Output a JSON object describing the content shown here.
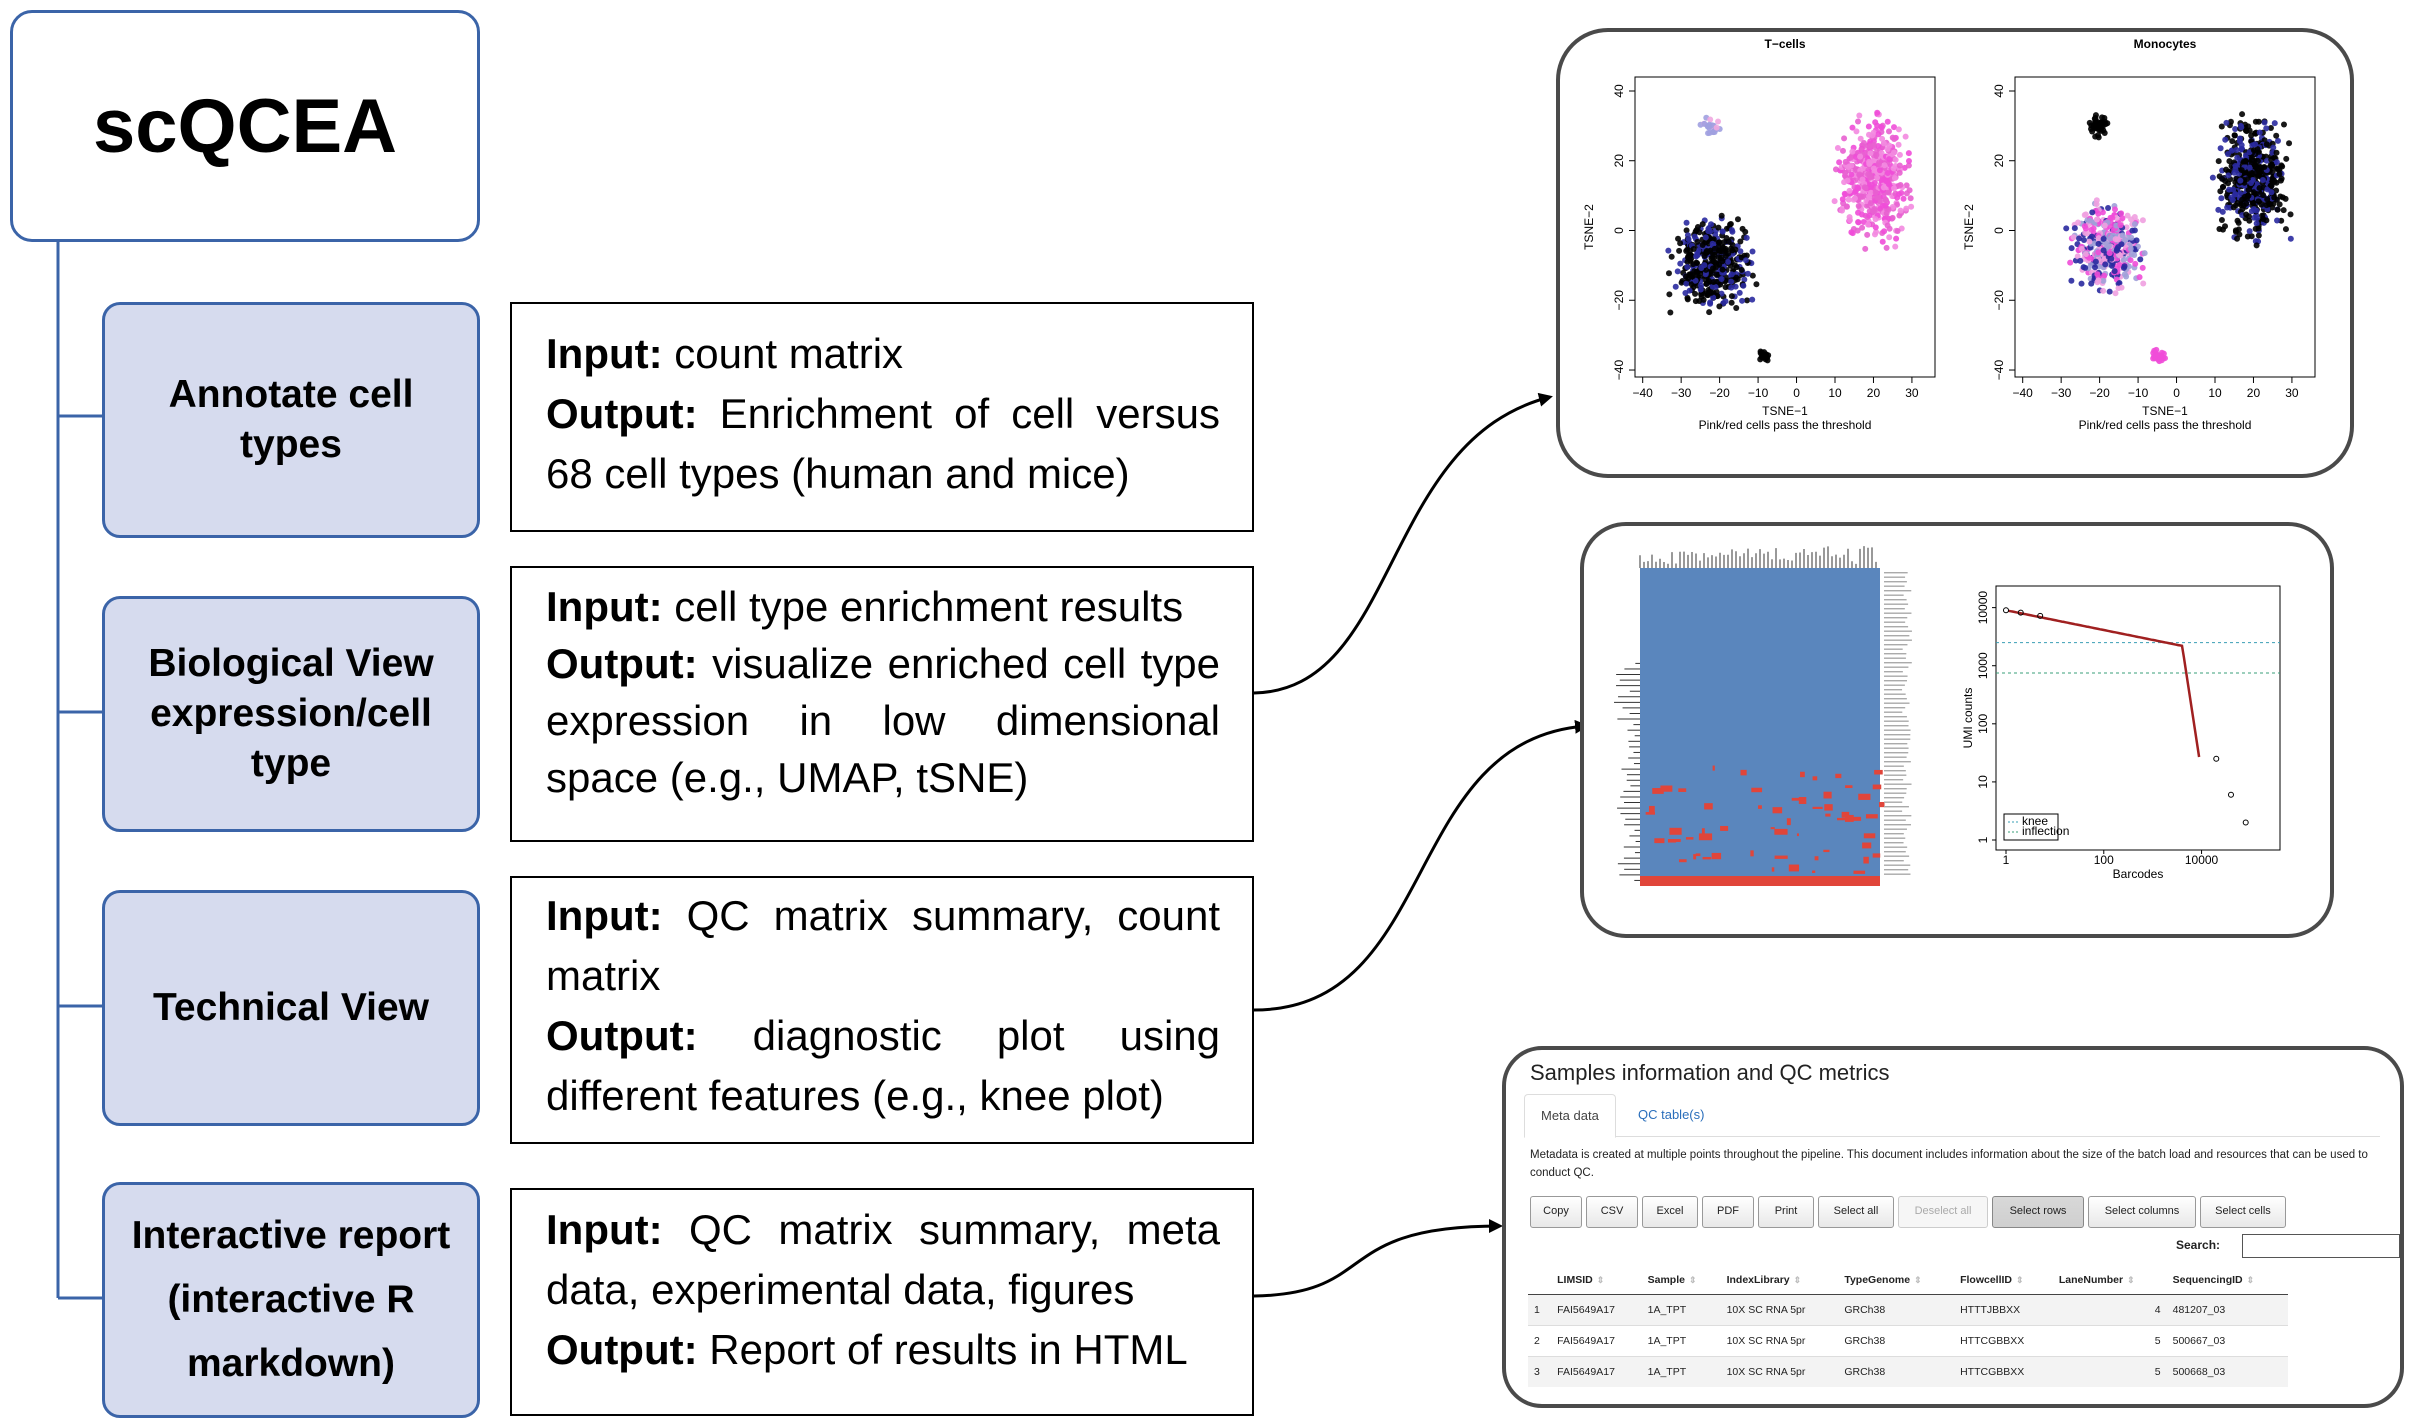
{
  "title": "scQCEA",
  "steps": [
    {
      "label_lines": [
        "Annotate cell",
        "types"
      ],
      "input_label": "Input:",
      "input": "count matrix",
      "output_label": "Output:",
      "output": "Enrichment of cell versus 68 cell types (human and mice)"
    },
    {
      "label_lines": [
        "Biological View",
        "expression/cell",
        "type"
      ],
      "input_label": "Input:",
      "input": "cell type enrichment results",
      "output_label": "Output:",
      "output": "visualize enriched cell type expression in low dimensional space (e.g., UMAP, tSNE)"
    },
    {
      "label_lines": [
        "Technical View"
      ],
      "input_label": "Input:",
      "input": "QC matrix summary, count matrix",
      "output_label": "Output:",
      "output": "diagnostic plot using different features (e.g., knee plot)"
    },
    {
      "label_lines": [
        "Interactive report",
        "(interactive R",
        "markdown)"
      ],
      "input_label": "Input:",
      "input": "QC matrix summary, meta data, experimental data, figures",
      "output_label": "Output:",
      "output": "Report of results in HTML"
    }
  ],
  "tsne": {
    "xlabel": "TSNE−1",
    "ylabel": "TSNE−2",
    "caption": "Pink/red cells pass the threshold",
    "xticks": [
      "−40",
      "−30",
      "−20",
      "−10",
      "0",
      "10",
      "20",
      "30"
    ],
    "yticks": [
      "−40",
      "−20",
      "0",
      "20",
      "40"
    ],
    "plots": [
      {
        "title": "T−cells"
      },
      {
        "title": "Monocytes"
      }
    ]
  },
  "knee": {
    "xlabel": "Barcodes",
    "ylabel": "UMI counts",
    "xticks": [
      "1",
      "100",
      "10000"
    ],
    "yticks": [
      "1",
      "10",
      "100",
      "1000",
      "10000"
    ],
    "legend": [
      "knee",
      "inflection"
    ]
  },
  "report": {
    "header": "Samples information and QC metrics",
    "tabs": [
      "Meta data",
      "QC table(s)"
    ],
    "description": "Metadata is created at multiple points throughout the pipeline. This document includes information about the size of the batch load and resources that can be used to conduct QC.",
    "buttons": [
      "Copy",
      "CSV",
      "Excel",
      "PDF",
      "Print",
      "Select all",
      "Deselect all",
      "Select rows",
      "Select columns",
      "Select cells"
    ],
    "search_label": "Search:",
    "columns": [
      "LIMSID",
      "Sample",
      "IndexLibrary",
      "TypeGenome",
      "FlowcellID",
      "LaneNumber",
      "SequencingID"
    ],
    "rows": [
      [
        "1",
        "FAI5649A17",
        "1A_TPT",
        "10X SC RNA 5pr",
        "GRCh38",
        "HTTTJBBXX",
        "4",
        "481207_03"
      ],
      [
        "2",
        "FAI5649A17",
        "1A_TPT",
        "10X SC RNA 5pr",
        "GRCh38",
        "HTTCGBBXX",
        "5",
        "500667_03"
      ],
      [
        "3",
        "FAI5649A17",
        "1A_TPT",
        "10X SC RNA 5pr",
        "GRCh38",
        "HTTCGBBXX",
        "5",
        "500668_03"
      ]
    ]
  },
  "colors": {
    "accent": "#3b64a8",
    "step_fill": "#d6dbee",
    "heatmap": "#5a86bd",
    "heat_high": "#e0453a",
    "tsne_pass": "#f04cd8",
    "tsne_fail": "#000000",
    "tsne_mid": "#2a2aa0"
  }
}
